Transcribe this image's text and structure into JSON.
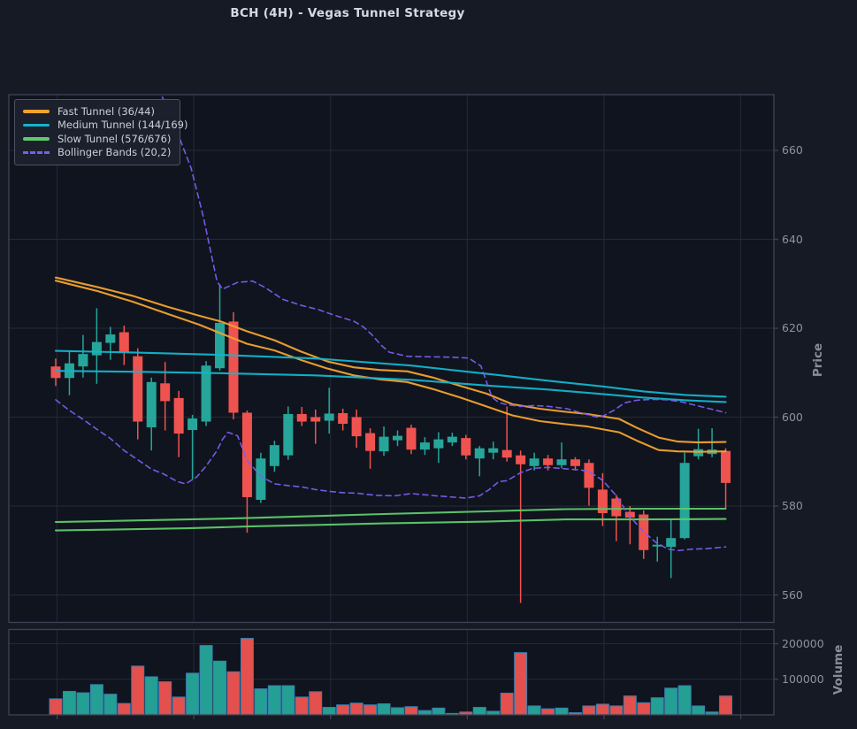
{
  "title": "BCH (4H) - Vegas Tunnel Strategy",
  "legend": {
    "items": [
      {
        "label": "Fast Tunnel (36/44)",
        "color": "#f3a32e",
        "dash": false
      },
      {
        "label": "Medium Tunnel (144/169)",
        "color": "#13b5cd",
        "dash": false
      },
      {
        "label": "Slow Tunnel (576/676)",
        "color": "#5fc96c",
        "dash": false
      },
      {
        "label": "Bollinger Bands (20,2)",
        "color": "#7b5df0",
        "dash": true
      }
    ]
  },
  "price_axis": {
    "label": "Price",
    "ticks": [
      560,
      580,
      600,
      620,
      640,
      660
    ],
    "tick_labels": [
      "560",
      "580",
      "600",
      "620",
      "640",
      "660"
    ],
    "range": [
      553.8,
      672.5
    ]
  },
  "volume_axis": {
    "label": "Volume",
    "ticks": [
      100000,
      200000
    ],
    "tick_labels": [
      "100000",
      "200000"
    ],
    "range": [
      0,
      240000
    ]
  },
  "colors": {
    "bg_figure": "#161a25",
    "bg_axes": "#10141e",
    "grid": "#242a3a",
    "spine": "#3e4456",
    "tick_text": "#8b92a0",
    "title_text": "#d6d9e1",
    "candle_up": "#26a69a",
    "candle_down": "#ef5350",
    "volume_edge": "#3a7fb0",
    "fast": "#f3a32e",
    "medium": "#13b5cd",
    "slow": "#5fc96c",
    "bollinger": "#7b5df0",
    "legend_bg": "#1b202c",
    "legend_border": "#4d5363",
    "legend_text": "#cbcfd8"
  },
  "chart_data": {
    "type": "candlestick",
    "title": "BCH (4H) - Vegas Tunnel Strategy",
    "ylabel": "Price",
    "ylabel2": "Volume",
    "ylim": [
      553.8,
      672.5
    ],
    "volume_ylim": [
      0,
      240000
    ],
    "grid": true,
    "x_grid_idx": [
      0.1,
      10.1,
      20.1,
      30.1,
      40.1,
      50.1
    ],
    "volume_unit": 1000,
    "candles_format": [
      "open",
      "high",
      "low",
      "close",
      "volume_thousands"
    ],
    "candles": [
      [
        611.4,
        613.2,
        607.0,
        608.8,
        45
      ],
      [
        608.8,
        614.9,
        604.9,
        612.1,
        66
      ],
      [
        611.4,
        618.5,
        608.9,
        614.2,
        62
      ],
      [
        613.9,
        624.5,
        607.5,
        616.9,
        85
      ],
      [
        616.7,
        620.3,
        612.9,
        618.6,
        58
      ],
      [
        619.1,
        620.6,
        611.7,
        614.6,
        32
      ],
      [
        613.7,
        615.5,
        595.0,
        599.0,
        137
      ],
      [
        597.7,
        608.9,
        592.5,
        607.9,
        107
      ],
      [
        607.6,
        612.4,
        597.0,
        603.6,
        93
      ],
      [
        604.3,
        605.9,
        591.0,
        596.3,
        50
      ],
      [
        597.1,
        600.5,
        586.0,
        599.7,
        117
      ],
      [
        599.0,
        612.6,
        598.0,
        611.6,
        195
      ],
      [
        611.0,
        629.9,
        610.5,
        621.2,
        151
      ],
      [
        621.5,
        623.6,
        599.5,
        601.0,
        121
      ],
      [
        601.0,
        601.5,
        574.0,
        582.0,
        215
      ],
      [
        581.4,
        592.0,
        580.7,
        590.7,
        73
      ],
      [
        589.0,
        594.7,
        587.7,
        593.7,
        82
      ],
      [
        591.4,
        602.4,
        590.4,
        600.7,
        82
      ],
      [
        600.7,
        602.3,
        598.0,
        599.0,
        50
      ],
      [
        600.0,
        601.7,
        594.0,
        599.0,
        65
      ],
      [
        599.2,
        606.6,
        596.3,
        600.8,
        21
      ],
      [
        600.9,
        601.9,
        597.0,
        598.5,
        28
      ],
      [
        600.0,
        601.7,
        593.1,
        595.7,
        33
      ],
      [
        596.4,
        597.5,
        588.4,
        592.4,
        28
      ],
      [
        592.3,
        597.9,
        591.3,
        595.6,
        31
      ],
      [
        594.8,
        597.0,
        593.5,
        595.8,
        20
      ],
      [
        597.6,
        598.3,
        591.7,
        592.7,
        23
      ],
      [
        592.7,
        595.5,
        591.5,
        594.3,
        12
      ],
      [
        593.0,
        596.6,
        589.7,
        595.0,
        19
      ],
      [
        594.3,
        596.5,
        593.5,
        595.6,
        4
      ],
      [
        595.3,
        596.0,
        590.5,
        591.4,
        8
      ],
      [
        590.7,
        593.5,
        586.7,
        593.0,
        21
      ],
      [
        592.0,
        594.5,
        590.5,
        593.0,
        10
      ],
      [
        592.6,
        602.4,
        590.0,
        590.9,
        61
      ],
      [
        591.4,
        592.5,
        558.2,
        589.4,
        175
      ],
      [
        589.0,
        592.0,
        588.0,
        590.7,
        25
      ],
      [
        590.7,
        591.5,
        588.0,
        589.2,
        17
      ],
      [
        589.2,
        594.3,
        588.5,
        590.5,
        19
      ],
      [
        590.5,
        591.0,
        588.0,
        589.0,
        6
      ],
      [
        589.7,
        590.5,
        580.1,
        584.1,
        25
      ],
      [
        583.7,
        587.4,
        575.5,
        578.4,
        30
      ],
      [
        581.7,
        582.5,
        572.1,
        577.7,
        25
      ],
      [
        578.7,
        580.0,
        571.4,
        577.4,
        53
      ],
      [
        578.1,
        579.0,
        568.1,
        570.1,
        34
      ],
      [
        570.9,
        573.1,
        567.5,
        571.3,
        48
      ],
      [
        570.8,
        577.0,
        563.8,
        572.8,
        75
      ],
      [
        572.8,
        592.0,
        572.5,
        589.7,
        82
      ],
      [
        591.2,
        597.4,
        590.5,
        592.8,
        25
      ],
      [
        591.7,
        597.5,
        591.0,
        592.7,
        8
      ],
      [
        592.4,
        593.0,
        579.5,
        585.2,
        53
      ]
    ],
    "overlays": [
      {
        "name": "Fast Tunnel upper",
        "color": "#f3a32e",
        "dash": false,
        "points": [
          [
            0,
            631.4
          ],
          [
            3,
            629.3
          ],
          [
            5.6,
            627.3
          ],
          [
            8.2,
            624.8
          ],
          [
            10.5,
            622.8
          ],
          [
            12.1,
            621.5
          ],
          [
            14,
            619.3
          ],
          [
            16,
            617.3
          ],
          [
            17.9,
            614.8
          ],
          [
            19.9,
            612.5
          ],
          [
            21.8,
            611.2
          ],
          [
            23.7,
            610.6
          ],
          [
            25.7,
            610.3
          ],
          [
            27.6,
            608.9
          ],
          [
            29.6,
            607.0
          ],
          [
            31.5,
            605.3
          ],
          [
            33.4,
            602.9
          ],
          [
            35.4,
            601.9
          ],
          [
            37.3,
            601.2
          ],
          [
            38.9,
            600.7
          ],
          [
            41.2,
            599.6
          ],
          [
            42.5,
            597.6
          ],
          [
            44.1,
            595.4
          ],
          [
            45.5,
            594.5
          ],
          [
            47,
            594.3
          ],
          [
            49,
            594.4
          ]
        ]
      },
      {
        "name": "Fast Tunnel lower",
        "color": "#f3a32e",
        "dash": false,
        "points": [
          [
            0,
            630.7
          ],
          [
            3,
            628.4
          ],
          [
            5.6,
            626.0
          ],
          [
            8.2,
            623.2
          ],
          [
            10.5,
            620.8
          ],
          [
            12.1,
            618.8
          ],
          [
            14,
            616.5
          ],
          [
            16,
            615.0
          ],
          [
            17.9,
            612.9
          ],
          [
            19.9,
            610.9
          ],
          [
            21.8,
            609.4
          ],
          [
            23.7,
            608.5
          ],
          [
            25.7,
            607.9
          ],
          [
            27.6,
            606.3
          ],
          [
            29.6,
            604.4
          ],
          [
            31.5,
            602.4
          ],
          [
            33.4,
            600.4
          ],
          [
            35.4,
            599.1
          ],
          [
            37.3,
            598.4
          ],
          [
            38.9,
            597.9
          ],
          [
            41.2,
            596.6
          ],
          [
            42.5,
            594.7
          ],
          [
            44.1,
            592.6
          ],
          [
            45.5,
            592.3
          ],
          [
            47,
            592.2
          ],
          [
            49,
            592.3
          ]
        ]
      },
      {
        "name": "Medium Tunnel upper",
        "color": "#13b5cd",
        "dash": false,
        "points": [
          [
            0,
            614.9
          ],
          [
            6,
            614.5
          ],
          [
            12,
            614.0
          ],
          [
            19,
            613.2
          ],
          [
            26,
            611.6
          ],
          [
            32,
            609.6
          ],
          [
            36,
            608.2
          ],
          [
            40,
            606.9
          ],
          [
            43,
            605.8
          ],
          [
            46,
            605.0
          ],
          [
            49,
            604.6
          ]
        ]
      },
      {
        "name": "Medium Tunnel lower",
        "color": "#13b5cd",
        "dash": false,
        "points": [
          [
            0,
            610.4
          ],
          [
            6,
            610.2
          ],
          [
            12,
            609.9
          ],
          [
            19,
            609.4
          ],
          [
            26,
            608.4
          ],
          [
            32,
            607.0
          ],
          [
            36,
            606.2
          ],
          [
            40,
            605.2
          ],
          [
            43,
            604.4
          ],
          [
            46,
            603.8
          ],
          [
            49,
            603.4
          ]
        ]
      },
      {
        "name": "Slow Tunnel upper",
        "color": "#5fc96c",
        "dash": false,
        "points": [
          [
            0,
            576.4
          ],
          [
            9.7,
            577.0
          ],
          [
            14,
            577.3
          ],
          [
            24,
            578.2
          ],
          [
            31.5,
            578.8
          ],
          [
            37.3,
            579.3
          ],
          [
            43,
            579.4
          ],
          [
            49,
            579.4
          ]
        ]
      },
      {
        "name": "Slow Tunnel lower",
        "color": "#5fc96c",
        "dash": false,
        "points": [
          [
            0,
            574.5
          ],
          [
            9.7,
            575.0
          ],
          [
            14,
            575.4
          ],
          [
            24,
            576.1
          ],
          [
            31.5,
            576.5
          ],
          [
            37.3,
            577.0
          ],
          [
            43,
            577.0
          ],
          [
            49,
            577.1
          ]
        ]
      },
      {
        "name": "Bollinger upper",
        "color": "#7b5df0",
        "dash": true,
        "points": [
          [
            7.8,
            672.0
          ],
          [
            8.9,
            664.0
          ],
          [
            9.9,
            656.0
          ],
          [
            10.8,
            645.0
          ],
          [
            11.8,
            630.5
          ],
          [
            12.2,
            628.8
          ],
          [
            13.3,
            630.3
          ],
          [
            14.4,
            630.6
          ],
          [
            15.3,
            629.2
          ],
          [
            16.6,
            626.5
          ],
          [
            17.9,
            625.2
          ],
          [
            19.2,
            624.2
          ],
          [
            20.5,
            622.8
          ],
          [
            21.8,
            621.6
          ],
          [
            22.5,
            620.3
          ],
          [
            23.1,
            618.6
          ],
          [
            23.8,
            616.2
          ],
          [
            24.4,
            614.6
          ],
          [
            25.7,
            613.7
          ],
          [
            27,
            613.6
          ],
          [
            28.9,
            613.5
          ],
          [
            30.2,
            613.3
          ],
          [
            31.1,
            611.5
          ],
          [
            31.9,
            604.5
          ],
          [
            32.4,
            603.3
          ],
          [
            33,
            602.8
          ],
          [
            34,
            602.4
          ],
          [
            35,
            602.6
          ],
          [
            36.1,
            602.4
          ],
          [
            37.4,
            601.9
          ],
          [
            38.6,
            600.8
          ],
          [
            39.6,
            600.0
          ],
          [
            40,
            600.2
          ],
          [
            40.8,
            601.5
          ],
          [
            41.6,
            603.2
          ],
          [
            42.5,
            603.8
          ],
          [
            43.5,
            604.0
          ],
          [
            44.7,
            603.9
          ],
          [
            45.8,
            603.4
          ],
          [
            47,
            602.5
          ],
          [
            48.1,
            601.7
          ],
          [
            49,
            601.0
          ]
        ]
      },
      {
        "name": "Bollinger lower",
        "color": "#7b5df0",
        "dash": true,
        "points": [
          [
            0,
            603.9
          ],
          [
            1,
            601.5
          ],
          [
            2,
            599.5
          ],
          [
            3,
            597.3
          ],
          [
            4,
            595.2
          ],
          [
            5,
            592.5
          ],
          [
            6,
            590.4
          ],
          [
            7,
            588.3
          ],
          [
            7.9,
            587.2
          ],
          [
            8.9,
            585.5
          ],
          [
            9.5,
            585.0
          ],
          [
            10.3,
            586.5
          ],
          [
            11,
            589.0
          ],
          [
            11.8,
            592.5
          ],
          [
            12.2,
            595.0
          ],
          [
            12.6,
            596.6
          ],
          [
            13.3,
            595.8
          ],
          [
            14,
            590.3
          ],
          [
            15,
            586.7
          ],
          [
            16,
            585.0
          ],
          [
            17,
            584.6
          ],
          [
            18,
            584.3
          ],
          [
            19,
            583.7
          ],
          [
            20,
            583.3
          ],
          [
            21,
            583.0
          ],
          [
            22,
            582.9
          ],
          [
            23.4,
            582.4
          ],
          [
            24.8,
            582.3
          ],
          [
            26,
            582.8
          ],
          [
            27.8,
            582.3
          ],
          [
            30,
            581.8
          ],
          [
            31,
            582.3
          ],
          [
            31.7,
            583.7
          ],
          [
            32.4,
            585.5
          ],
          [
            33,
            585.7
          ],
          [
            34,
            587.5
          ],
          [
            34.9,
            588.5
          ],
          [
            36,
            588.7
          ],
          [
            37.2,
            588.4
          ],
          [
            38.4,
            588.1
          ],
          [
            39,
            587.8
          ],
          [
            40,
            585.8
          ],
          [
            41,
            582.3
          ],
          [
            41.9,
            578.0
          ],
          [
            42.9,
            574.5
          ],
          [
            43.9,
            571.8
          ],
          [
            44.8,
            570.3
          ],
          [
            45.6,
            570.0
          ],
          [
            46.5,
            570.3
          ],
          [
            47.5,
            570.4
          ],
          [
            48.3,
            570.6
          ],
          [
            49,
            570.8
          ]
        ]
      }
    ]
  }
}
